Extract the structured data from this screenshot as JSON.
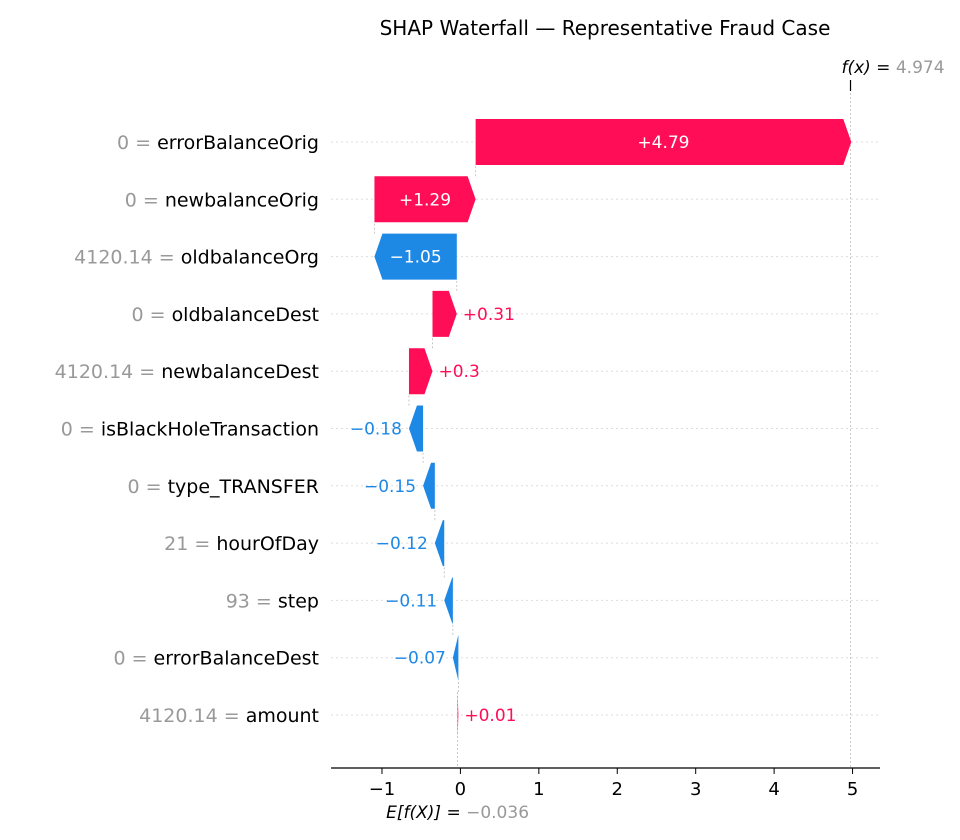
{
  "chart_data": {
    "type": "waterfall",
    "title": "SHAP Waterfall — Representative Fraud Case",
    "base_value": -0.036,
    "base_label": "E[f(X)] = ",
    "base_value_text": "−0.036",
    "output_value": 4.974,
    "output_label": "f(x) = ",
    "output_value_text": "4.974",
    "xlim": [
      -1.65,
      5.35
    ],
    "x_ticks": [
      -1,
      0,
      1,
      2,
      3,
      4,
      5
    ],
    "x_tick_labels": [
      "−1",
      "0",
      "1",
      "2",
      "3",
      "4",
      "5"
    ],
    "features": [
      {
        "value": "0",
        "name": "errorBalanceOrig",
        "shap": 4.79,
        "label": "+4.79"
      },
      {
        "value": "0",
        "name": "newbalanceOrig",
        "shap": 1.29,
        "label": "+1.29"
      },
      {
        "value": "4120.14",
        "name": "oldbalanceOrg",
        "shap": -1.05,
        "label": "−1.05"
      },
      {
        "value": "0",
        "name": "oldbalanceDest",
        "shap": 0.31,
        "label": "+0.31"
      },
      {
        "value": "4120.14",
        "name": "newbalanceDest",
        "shap": 0.3,
        "label": "+0.3"
      },
      {
        "value": "0",
        "name": "isBlackHoleTransaction",
        "shap": -0.18,
        "label": "−0.18"
      },
      {
        "value": "0",
        "name": "type_TRANSFER",
        "shap": -0.15,
        "label": "−0.15"
      },
      {
        "value": "21",
        "name": "hourOfDay",
        "shap": -0.12,
        "label": "−0.12"
      },
      {
        "value": "93",
        "name": "step",
        "shap": -0.11,
        "label": "−0.11"
      },
      {
        "value": "0",
        "name": "errorBalanceDest",
        "shap": -0.07,
        "label": "−0.07"
      },
      {
        "value": "4120.14",
        "name": "amount",
        "shap": 0.01,
        "label": "+0.01"
      }
    ],
    "colors": {
      "positive": "#ff0d57",
      "negative": "#1e88e5",
      "on_bar_text": "#ffffff"
    },
    "grid": true
  }
}
